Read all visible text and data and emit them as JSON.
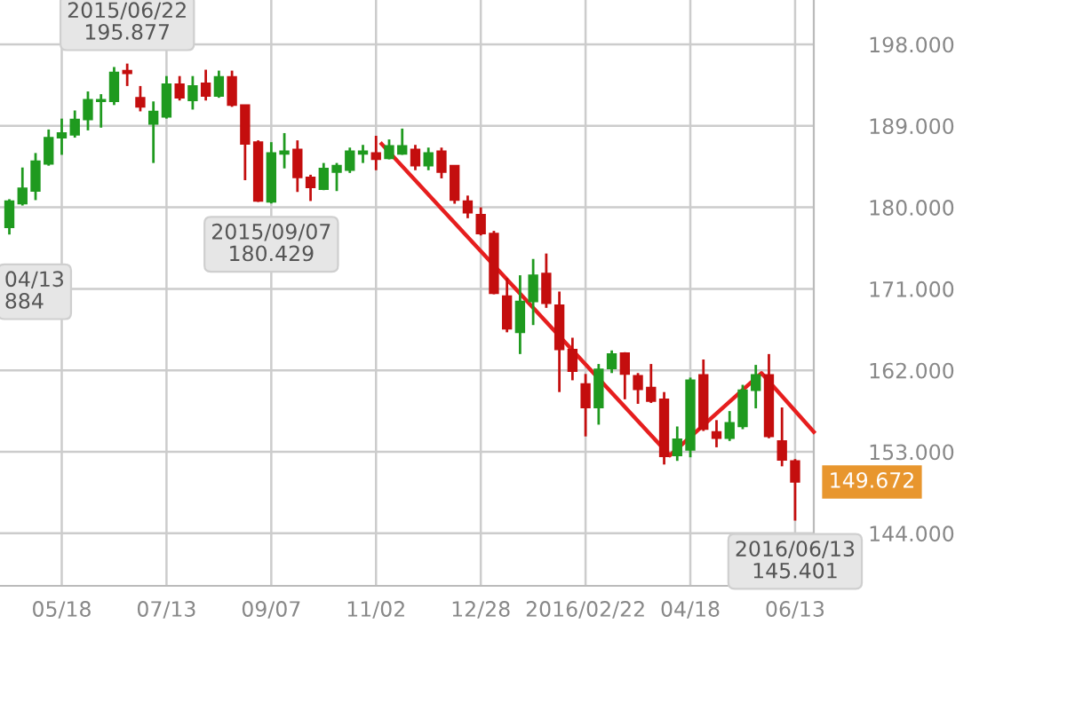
{
  "chart_data": {
    "type": "candlestick",
    "x": [
      "2015-04-20",
      "2015-04-27",
      "2015-05-04",
      "2015-05-11",
      "2015-05-18",
      "2015-05-25",
      "2015-06-01",
      "2015-06-08",
      "2015-06-15",
      "2015-06-22",
      "2015-06-29",
      "2015-07-06",
      "2015-07-13",
      "2015-07-20",
      "2015-07-27",
      "2015-08-03",
      "2015-08-10",
      "2015-08-17",
      "2015-08-24",
      "2015-08-31",
      "2015-09-07",
      "2015-09-14",
      "2015-09-21",
      "2015-09-28",
      "2015-10-05",
      "2015-10-12",
      "2015-10-19",
      "2015-10-26",
      "2015-11-02",
      "2015-11-09",
      "2015-11-16",
      "2015-11-23",
      "2015-11-30",
      "2015-12-07",
      "2015-12-14",
      "2015-12-21",
      "2015-12-28",
      "2016-01-04",
      "2016-01-11",
      "2016-01-18",
      "2016-01-25",
      "2016-02-01",
      "2016-02-08",
      "2016-02-15",
      "2016-02-22",
      "2016-02-29",
      "2016-03-07",
      "2016-03-14",
      "2016-03-21",
      "2016-03-28",
      "2016-04-04",
      "2016-04-11",
      "2016-04-18",
      "2016-04-25",
      "2016-05-02",
      "2016-05-09",
      "2016-05-16",
      "2016-05-23",
      "2016-05-30",
      "2016-06-06",
      "2016-06-13"
    ],
    "ohlc": [
      [
        177.8,
        180.9,
        177.0,
        180.7
      ],
      [
        180.4,
        184.4,
        180.2,
        182.1
      ],
      [
        181.8,
        186.0,
        180.8,
        185.1
      ],
      [
        184.8,
        188.6,
        184.6,
        187.7
      ],
      [
        187.7,
        189.8,
        185.8,
        188.2
      ],
      [
        188.0,
        190.7,
        187.7,
        189.7
      ],
      [
        189.7,
        192.8,
        188.5,
        191.9
      ],
      [
        191.7,
        192.5,
        188.8,
        191.9
      ],
      [
        191.7,
        195.5,
        191.3,
        194.9
      ],
      [
        195.1,
        195.877,
        193.4,
        194.8
      ],
      [
        192.1,
        193.4,
        190.6,
        191.1
      ],
      [
        189.2,
        191.7,
        184.9,
        190.6
      ],
      [
        190.0,
        194.5,
        189.8,
        193.6
      ],
      [
        193.6,
        194.5,
        191.8,
        192.1
      ],
      [
        191.8,
        194.5,
        190.8,
        193.4
      ],
      [
        193.7,
        195.2,
        191.8,
        192.3
      ],
      [
        192.3,
        195.1,
        192.1,
        194.4
      ],
      [
        194.4,
        195.1,
        191.1,
        191.3
      ],
      [
        191.3,
        191.3,
        183.0,
        187.0
      ],
      [
        187.2,
        187.4,
        180.6,
        180.7
      ],
      [
        180.6,
        187.2,
        180.429,
        186.0
      ],
      [
        185.9,
        188.2,
        184.3,
        186.2
      ],
      [
        186.4,
        187.4,
        181.7,
        183.3
      ],
      [
        183.3,
        183.6,
        180.7,
        182.2
      ],
      [
        182.0,
        184.9,
        181.9,
        184.3
      ],
      [
        183.9,
        184.9,
        181.8,
        184.6
      ],
      [
        184.1,
        186.6,
        183.8,
        186.2
      ],
      [
        185.9,
        186.9,
        184.9,
        186.2
      ],
      [
        186.0,
        187.9,
        184.1,
        185.3
      ],
      [
        185.4,
        187.5,
        185.3,
        186.8
      ],
      [
        185.9,
        188.7,
        185.8,
        186.8
      ],
      [
        186.4,
        186.9,
        184.1,
        184.6
      ],
      [
        184.6,
        186.6,
        184.1,
        186.0
      ],
      [
        186.2,
        186.6,
        183.2,
        183.9
      ],
      [
        184.6,
        184.6,
        180.4,
        180.8
      ],
      [
        180.7,
        181.3,
        178.8,
        179.4
      ],
      [
        179.2,
        180.0,
        176.9,
        177.1
      ],
      [
        177.1,
        177.4,
        170.4,
        170.5
      ],
      [
        170.2,
        172.2,
        166.2,
        166.6
      ],
      [
        166.2,
        172.5,
        163.8,
        169.6
      ],
      [
        169.6,
        174.3,
        167.0,
        172.5
      ],
      [
        172.7,
        174.9,
        168.9,
        169.4
      ],
      [
        169.2,
        170.7,
        159.6,
        164.3
      ],
      [
        164.3,
        165.6,
        160.9,
        161.9
      ],
      [
        160.5,
        161.6,
        154.7,
        157.9
      ],
      [
        157.9,
        162.7,
        156.0,
        162.1
      ],
      [
        162.2,
        164.2,
        161.7,
        163.8
      ],
      [
        163.9,
        164.0,
        158.8,
        161.6
      ],
      [
        161.4,
        161.7,
        158.3,
        159.9
      ],
      [
        160.1,
        162.7,
        158.4,
        158.6
      ],
      [
        158.8,
        159.6,
        151.6,
        152.5
      ],
      [
        152.6,
        155.8,
        152.0,
        154.4
      ],
      [
        153.2,
        161.2,
        152.4,
        160.9
      ],
      [
        161.5,
        163.2,
        155.3,
        155.5
      ],
      [
        155.2,
        156.5,
        153.5,
        154.5
      ],
      [
        154.5,
        157.5,
        154.2,
        156.2
      ],
      [
        155.8,
        160.4,
        155.5,
        159.8
      ],
      [
        159.8,
        162.6,
        157.8,
        161.5
      ],
      [
        161.5,
        163.8,
        154.5,
        154.7
      ],
      [
        154.2,
        157.9,
        151.4,
        152.1
      ],
      [
        152.0,
        152.2,
        145.401,
        149.672
      ]
    ],
    "colors": [
      "#1f9a1f",
      "#1f9a1f",
      "#1f9a1f",
      "#1f9a1f",
      "#1f9a1f",
      "#1f9a1f",
      "#1f9a1f",
      "#1f9a1f",
      "#1f9a1f",
      "#c40e0e",
      "#c40e0e",
      "#1f9a1f",
      "#1f9a1f",
      "#c40e0e",
      "#1f9a1f",
      "#c40e0e",
      "#1f9a1f",
      "#c40e0e",
      "#c40e0e",
      "#c40e0e",
      "#1f9a1f",
      "#1f9a1f",
      "#c40e0e",
      "#c40e0e",
      "#1f9a1f",
      "#1f9a1f",
      "#1f9a1f",
      "#1f9a1f",
      "#c40e0e",
      "#1f9a1f",
      "#1f9a1f",
      "#c40e0e",
      "#1f9a1f",
      "#c40e0e",
      "#c40e0e",
      "#c40e0e",
      "#c40e0e",
      "#c40e0e",
      "#c40e0e",
      "#1f9a1f",
      "#1f9a1f",
      "#c40e0e",
      "#c40e0e",
      "#c40e0e",
      "#c40e0e",
      "#1f9a1f",
      "#1f9a1f",
      "#c40e0e",
      "#c40e0e",
      "#c40e0e",
      "#c40e0e",
      "#1f9a1f",
      "#1f9a1f",
      "#c40e0e",
      "#c40e0e",
      "#1f9a1f",
      "#1f9a1f",
      "#1f9a1f",
      "#c40e0e",
      "#c40e0e",
      "#c40e0e"
    ],
    "series": [
      {
        "type": "line",
        "color": "#e61e1e",
        "x": [
          "2015-11-05",
          "2016-04-07",
          "2016-05-26",
          "2016-06-23"
        ],
        "values": [
          187.0,
          152.6,
          161.7,
          155.2
        ]
      }
    ],
    "xlim": [
      "2015-04-15",
      "2016-06-23"
    ],
    "xticks": [
      {
        "value": "2015-05-18",
        "label": "05/18"
      },
      {
        "value": "2015-07-13",
        "label": "07/13"
      },
      {
        "value": "2015-09-07",
        "label": "09/07"
      },
      {
        "value": "2015-11-02",
        "label": "11/02"
      },
      {
        "value": "2015-12-28",
        "label": "12/28"
      },
      {
        "value": "2016-02-22",
        "label": "2016/02/22"
      },
      {
        "value": "2016-04-18",
        "label": "04/18"
      },
      {
        "value": "2016-06-13",
        "label": "06/13"
      }
    ],
    "ylim": [
      138.2,
      202.9
    ],
    "yticks": [
      {
        "value": 144,
        "label": "144.000"
      },
      {
        "value": 153,
        "label": "153.000"
      },
      {
        "value": 162,
        "label": "162.000"
      },
      {
        "value": 171,
        "label": "171.000"
      },
      {
        "value": 180,
        "label": "180.000"
      },
      {
        "value": 189,
        "label": "189.000"
      },
      {
        "value": 198,
        "label": "198.000"
      }
    ],
    "grid": true,
    "annotations": [
      {
        "text": "2015/06/22\n195.877",
        "x": "2015-06-22",
        "y": 195.877
      },
      {
        "text": "2015/09/07\n180.429",
        "x": "2015-09-07",
        "y": 180.429
      },
      {
        "text": "2016/06/13\n145.401",
        "x": "2016-06-13",
        "y": 145.401
      },
      "149.672",
      "04/13\n884"
    ]
  }
}
